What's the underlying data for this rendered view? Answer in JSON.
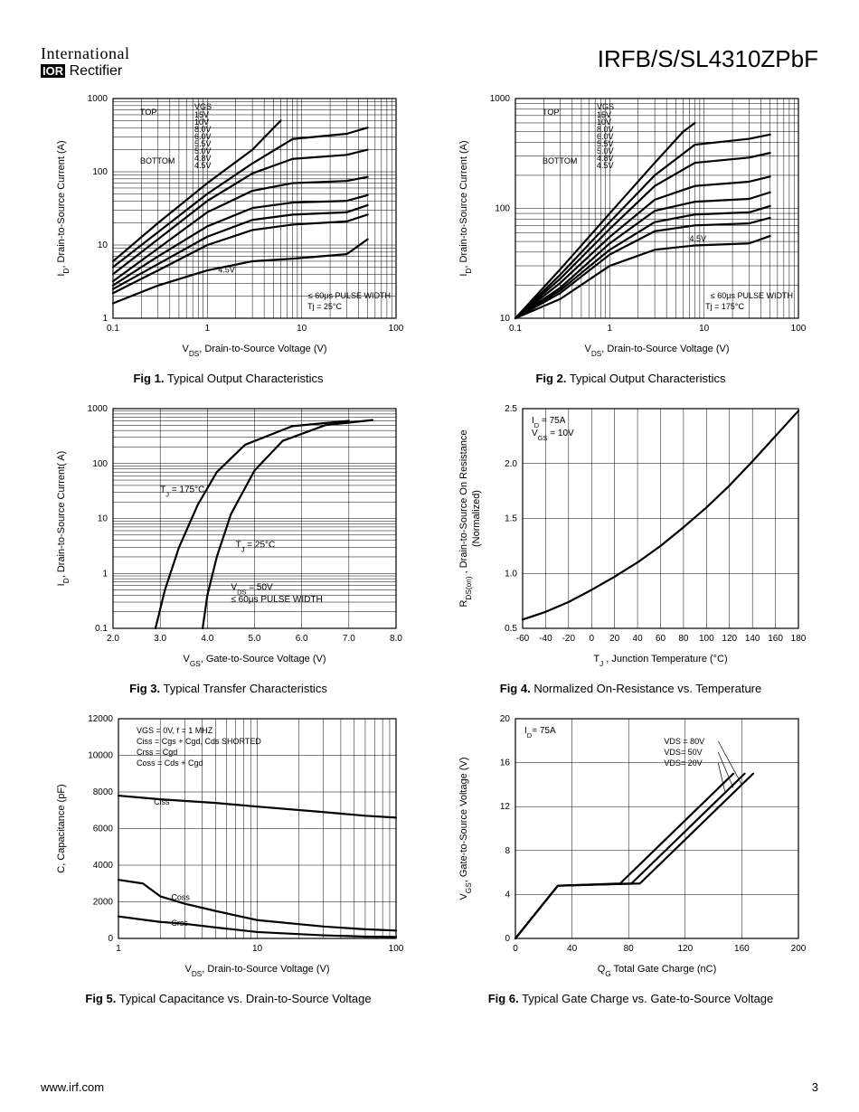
{
  "header": {
    "logo_line1": "International",
    "logo_ior": "IOR",
    "logo_line2": " Rectifier",
    "part_number": "IRFB/S/SL4310ZPbF"
  },
  "footer": {
    "url": "www.irf.com",
    "page_number": "3"
  },
  "common": {
    "stroke_color": "#000000",
    "grid_color": "#000000",
    "background_color": "#ffffff",
    "line_width_curve": 2.2,
    "line_width_grid": 0.5,
    "line_width_frame": 1.2,
    "font_size_axis_num": 10,
    "font_size_axis_label": 11,
    "font_size_annot": 9
  },
  "fig1": {
    "caption_bold": "Fig 1.",
    "caption_rest": "  Typical Output Characteristics",
    "xlabel_sym": "V",
    "xlabel_sub": "DS",
    "xlabel_rest": ", Drain-to-Source Voltage (V)",
    "ylabel_sym": "I",
    "ylabel_sub": "D",
    "ylabel_rest": ", Drain-to-Source Current (A)",
    "xscale": "log",
    "yscale": "log",
    "xlim": [
      0.1,
      100
    ],
    "ylim": [
      1,
      1000
    ],
    "xticks": [
      0.1,
      1,
      10,
      100
    ],
    "xtick_labels": [
      "0.1",
      "1",
      "10",
      "100"
    ],
    "yticks": [
      1,
      10,
      100,
      1000
    ],
    "ytick_labels": [
      "1",
      "10",
      "100",
      "1000"
    ],
    "legend_title": "VGS",
    "legend_top": "TOP",
    "legend_bottom": "BOTTOM",
    "legend_items": [
      "15V",
      "10V",
      "8.0V",
      "6.0V",
      "5.5V",
      "5.0V",
      "4.8V",
      "4.5V"
    ],
    "annot1": "≤ 60μs PULSE WIDTH",
    "annot2": "Tj = 25°C",
    "curve_label": "4.5V",
    "curves": [
      {
        "pts": [
          [
            0.1,
            6
          ],
          [
            0.3,
            20
          ],
          [
            1,
            70
          ],
          [
            3,
            200
          ],
          [
            6,
            500
          ]
        ]
      },
      {
        "pts": [
          [
            0.1,
            5
          ],
          [
            0.3,
            15
          ],
          [
            1,
            50
          ],
          [
            3,
            130
          ],
          [
            8,
            280
          ],
          [
            30,
            330
          ],
          [
            50,
            400
          ]
        ]
      },
      {
        "pts": [
          [
            0.1,
            4
          ],
          [
            0.3,
            12
          ],
          [
            1,
            40
          ],
          [
            3,
            95
          ],
          [
            8,
            150
          ],
          [
            30,
            170
          ],
          [
            50,
            200
          ]
        ]
      },
      {
        "pts": [
          [
            0.1,
            3.2
          ],
          [
            0.3,
            9
          ],
          [
            1,
            28
          ],
          [
            3,
            55
          ],
          [
            8,
            70
          ],
          [
            30,
            75
          ],
          [
            50,
            85
          ]
        ]
      },
      {
        "pts": [
          [
            0.1,
            2.8
          ],
          [
            0.3,
            7
          ],
          [
            1,
            18
          ],
          [
            3,
            32
          ],
          [
            8,
            38
          ],
          [
            30,
            40
          ],
          [
            50,
            48
          ]
        ]
      },
      {
        "pts": [
          [
            0.1,
            2.5
          ],
          [
            0.3,
            5.5
          ],
          [
            1,
            13
          ],
          [
            3,
            22
          ],
          [
            8,
            26
          ],
          [
            30,
            28
          ],
          [
            50,
            35
          ]
        ]
      },
      {
        "pts": [
          [
            0.1,
            2.2
          ],
          [
            0.3,
            4.5
          ],
          [
            1,
            10
          ],
          [
            3,
            16
          ],
          [
            8,
            19
          ],
          [
            30,
            21
          ],
          [
            50,
            26
          ]
        ]
      },
      {
        "pts": [
          [
            0.1,
            1.6
          ],
          [
            0.3,
            2.8
          ],
          [
            1,
            4.5
          ],
          [
            3,
            6
          ],
          [
            8,
            6.5
          ],
          [
            30,
            7.5
          ],
          [
            50,
            12
          ]
        ]
      }
    ]
  },
  "fig2": {
    "caption_bold": "Fig 2.",
    "caption_rest": "  Typical Output Characteristics",
    "xlabel_sym": "V",
    "xlabel_sub": "DS",
    "xlabel_rest": ", Drain-to-Source Voltage (V)",
    "ylabel_sym": "I",
    "ylabel_sub": "D",
    "ylabel_rest": ", Drain-to-Source Current (A)",
    "xscale": "log",
    "yscale": "log",
    "xlim": [
      0.1,
      100
    ],
    "ylim": [
      10,
      1000
    ],
    "xticks": [
      0.1,
      1,
      10,
      100
    ],
    "xtick_labels": [
      "0.1",
      "1",
      "10",
      "100"
    ],
    "yticks": [
      10,
      100,
      1000
    ],
    "ytick_labels": [
      "10",
      "100",
      "1000"
    ],
    "legend_title": "VGS",
    "legend_top": "TOP",
    "legend_bottom": "BOTTOM",
    "legend_items": [
      "15V",
      "10V",
      "8.0V",
      "6.0V",
      "5.5V",
      "5.0V",
      "4.8V",
      "4.5V"
    ],
    "annot1": "≤ 60μs PULSE WIDTH",
    "annot2": "Tj = 175°C",
    "curve_label": "4.5V",
    "curves": [
      {
        "pts": [
          [
            0.1,
            10
          ],
          [
            0.3,
            28
          ],
          [
            1,
            90
          ],
          [
            3,
            260
          ],
          [
            6,
            500
          ],
          [
            8,
            600
          ]
        ]
      },
      {
        "pts": [
          [
            0.1,
            10
          ],
          [
            0.3,
            25
          ],
          [
            1,
            75
          ],
          [
            3,
            200
          ],
          [
            8,
            380
          ],
          [
            30,
            430
          ],
          [
            50,
            470
          ]
        ]
      },
      {
        "pts": [
          [
            0.1,
            10
          ],
          [
            0.3,
            23
          ],
          [
            1,
            65
          ],
          [
            3,
            160
          ],
          [
            8,
            260
          ],
          [
            30,
            290
          ],
          [
            50,
            320
          ]
        ]
      },
      {
        "pts": [
          [
            0.1,
            10
          ],
          [
            0.3,
            21
          ],
          [
            1,
            55
          ],
          [
            3,
            120
          ],
          [
            8,
            160
          ],
          [
            30,
            175
          ],
          [
            50,
            195
          ]
        ]
      },
      {
        "pts": [
          [
            0.1,
            10
          ],
          [
            0.3,
            19
          ],
          [
            1,
            48
          ],
          [
            3,
            95
          ],
          [
            8,
            115
          ],
          [
            30,
            122
          ],
          [
            50,
            140
          ]
        ]
      },
      {
        "pts": [
          [
            0.1,
            10
          ],
          [
            0.3,
            18
          ],
          [
            1,
            42
          ],
          [
            3,
            75
          ],
          [
            8,
            88
          ],
          [
            30,
            92
          ],
          [
            50,
            105
          ]
        ]
      },
      {
        "pts": [
          [
            0.1,
            10
          ],
          [
            0.3,
            17
          ],
          [
            1,
            38
          ],
          [
            3,
            62
          ],
          [
            8,
            70
          ],
          [
            30,
            73
          ],
          [
            50,
            82
          ]
        ]
      },
      {
        "pts": [
          [
            0.1,
            10
          ],
          [
            0.3,
            15
          ],
          [
            1,
            30
          ],
          [
            3,
            42
          ],
          [
            8,
            46
          ],
          [
            30,
            48
          ],
          [
            50,
            56
          ]
        ]
      }
    ]
  },
  "fig3": {
    "caption_bold": "Fig 3.",
    "caption_rest": "  Typical Transfer Characteristics",
    "xlabel_sym": "V",
    "xlabel_sub": "GS",
    "xlabel_rest": ", Gate-to-Source Voltage (V)",
    "ylabel_sym": "I",
    "ylabel_sub": "D",
    "ylabel_rest": ", Drain-to-Source Current( A)",
    "xscale": "linear",
    "yscale": "log",
    "xlim": [
      2.0,
      8.0
    ],
    "ylim": [
      0.1,
      1000
    ],
    "xticks": [
      2.0,
      3.0,
      4.0,
      5.0,
      6.0,
      7.0,
      8.0
    ],
    "xtick_labels": [
      "2.0",
      "3.0",
      "4.0",
      "5.0",
      "6.0",
      "7.0",
      "8.0"
    ],
    "yticks": [
      0.1,
      1,
      10,
      100,
      1000
    ],
    "ytick_labels": [
      "0.1",
      "1",
      "10",
      "100",
      "1000"
    ],
    "annot_tj175": "T",
    "annot_tj175_sub": "J",
    "annot_tj175_rest": " = 175°C",
    "annot_tj25": "T",
    "annot_tj25_sub": "J",
    "annot_tj25_rest": " = 25°C",
    "annot_vds": "V",
    "annot_vds_sub": "DS",
    "annot_vds_rest": " = 50V",
    "annot_pulse": "≤ 60μs PULSE WIDTH",
    "curves": [
      {
        "pts": [
          [
            2.9,
            0.1
          ],
          [
            3.1,
            0.5
          ],
          [
            3.4,
            3
          ],
          [
            3.8,
            18
          ],
          [
            4.2,
            70
          ],
          [
            4.8,
            220
          ],
          [
            5.8,
            480
          ],
          [
            7.0,
            600
          ]
        ]
      },
      {
        "pts": [
          [
            3.9,
            0.1
          ],
          [
            4.0,
            0.4
          ],
          [
            4.2,
            2
          ],
          [
            4.5,
            12
          ],
          [
            5.0,
            75
          ],
          [
            5.6,
            260
          ],
          [
            6.5,
            500
          ],
          [
            7.5,
            620
          ]
        ]
      }
    ]
  },
  "fig4": {
    "caption_bold": "Fig 4.",
    "caption_rest": "  Normalized On-Resistance vs. Temperature",
    "xlabel_sym": "T",
    "xlabel_sub": "J",
    "xlabel_rest": " , Junction Temperature (°C)",
    "ylabel_sym": "R",
    "ylabel_sub": "DS(on)",
    "ylabel_rest": " , Drain-to-Source On Resistance",
    "ylabel_line2": "(Normalized)",
    "xscale": "linear",
    "yscale": "linear",
    "xlim": [
      -60,
      180
    ],
    "ylim": [
      0.5,
      2.5
    ],
    "xticks": [
      -60,
      -40,
      -20,
      0,
      20,
      40,
      60,
      80,
      100,
      120,
      140,
      160,
      180
    ],
    "xtick_labels": [
      "-60",
      "-40",
      "-20",
      "0",
      "20",
      "40",
      "60",
      "80",
      "100",
      "120",
      "140",
      "160",
      "180"
    ],
    "yticks": [
      0.5,
      1.0,
      1.5,
      2.0,
      2.5
    ],
    "ytick_labels": [
      "0.5",
      "1.0",
      "1.5",
      "2.0",
      "2.5"
    ],
    "annot1": "I",
    "annot1_sub": "D",
    "annot1_rest": " = 75A",
    "annot2": "V",
    "annot2_sub": "GS",
    "annot2_rest": " = 10V",
    "curves": [
      {
        "pts": [
          [
            -60,
            0.58
          ],
          [
            -40,
            0.65
          ],
          [
            -20,
            0.74
          ],
          [
            0,
            0.85
          ],
          [
            20,
            0.97
          ],
          [
            40,
            1.1
          ],
          [
            60,
            1.25
          ],
          [
            80,
            1.42
          ],
          [
            100,
            1.6
          ],
          [
            120,
            1.8
          ],
          [
            140,
            2.02
          ],
          [
            160,
            2.25
          ],
          [
            180,
            2.48
          ]
        ]
      }
    ]
  },
  "fig5": {
    "caption_bold": "Fig 5.",
    "caption_rest": "  Typical Capacitance vs. Drain-to-Source Voltage",
    "xlabel_sym": "V",
    "xlabel_sub": "DS",
    "xlabel_rest": ", Drain-to-Source Voltage (V)",
    "ylabel": "C, Capacitance (pF)",
    "xscale": "log",
    "yscale": "linear",
    "xlim": [
      1,
      100
    ],
    "ylim": [
      0,
      12000
    ],
    "xticks": [
      1,
      10,
      100
    ],
    "xtick_labels": [
      "1",
      "10",
      "100"
    ],
    "yticks": [
      0,
      2000,
      4000,
      6000,
      8000,
      10000,
      12000
    ],
    "ytick_labels": [
      "0",
      "2000",
      "4000",
      "6000",
      "8000",
      "10000",
      "12000"
    ],
    "annot_lines": [
      "V_GS   = 0V,        f = 1 MHZ",
      "C_iss   = C_gs + C_gd,  C_ds SHORTED",
      "C_rss   = C_gd",
      "C_oss  = C_ds + C_gd"
    ],
    "curve_labels": [
      "Ciss",
      "Coss",
      "Crss"
    ],
    "curves": [
      {
        "label": "Ciss",
        "pts": [
          [
            1,
            7800
          ],
          [
            2,
            7600
          ],
          [
            5,
            7400
          ],
          [
            10,
            7200
          ],
          [
            30,
            6900
          ],
          [
            60,
            6700
          ],
          [
            100,
            6600
          ]
        ]
      },
      {
        "label": "Coss",
        "pts": [
          [
            1,
            3200
          ],
          [
            1.5,
            3000
          ],
          [
            2,
            2300
          ],
          [
            3,
            1900
          ],
          [
            5,
            1500
          ],
          [
            10,
            1000
          ],
          [
            30,
            650
          ],
          [
            60,
            500
          ],
          [
            100,
            430
          ]
        ]
      },
      {
        "label": "Crss",
        "pts": [
          [
            1,
            1200
          ],
          [
            2,
            900
          ],
          [
            3,
            800
          ],
          [
            5,
            600
          ],
          [
            10,
            350
          ],
          [
            30,
            170
          ],
          [
            60,
            100
          ],
          [
            100,
            80
          ]
        ]
      }
    ]
  },
  "fig6": {
    "caption_bold": "Fig 6.",
    "caption_rest": "  Typical Gate Charge vs. Gate-to-Source Voltage",
    "xlabel_sym": "Q",
    "xlabel_sub": "G",
    "xlabel_rest": "  Total Gate Charge (nC)",
    "ylabel_sym": "V",
    "ylabel_sub": "GS",
    "ylabel_rest": ", Gate-to-Source Voltage (V)",
    "xscale": "linear",
    "yscale": "linear",
    "xlim": [
      0,
      200
    ],
    "ylim": [
      0,
      20
    ],
    "xticks": [
      0,
      40,
      80,
      120,
      160,
      200
    ],
    "xtick_labels": [
      "0",
      "40",
      "80",
      "120",
      "160",
      "200"
    ],
    "yticks": [
      0,
      4,
      8,
      12,
      16,
      20
    ],
    "ytick_labels": [
      "0",
      "4",
      "8",
      "12",
      "16",
      "20"
    ],
    "annot_id": "I",
    "annot_id_sub": "D",
    "annot_id_rest": "= 75A",
    "leader_labels": [
      "V_DS = 80V",
      "VDS= 50V",
      "VDS= 20V"
    ],
    "curves": [
      {
        "pts": [
          [
            0,
            0
          ],
          [
            30,
            4.8
          ],
          [
            88,
            5.0
          ],
          [
            168,
            15
          ]
        ]
      },
      {
        "pts": [
          [
            0,
            0
          ],
          [
            30,
            4.8
          ],
          [
            82,
            5.0
          ],
          [
            162,
            15
          ]
        ]
      },
      {
        "pts": [
          [
            0,
            0
          ],
          [
            30,
            4.8
          ],
          [
            74,
            5.0
          ],
          [
            154,
            15
          ]
        ]
      }
    ]
  }
}
